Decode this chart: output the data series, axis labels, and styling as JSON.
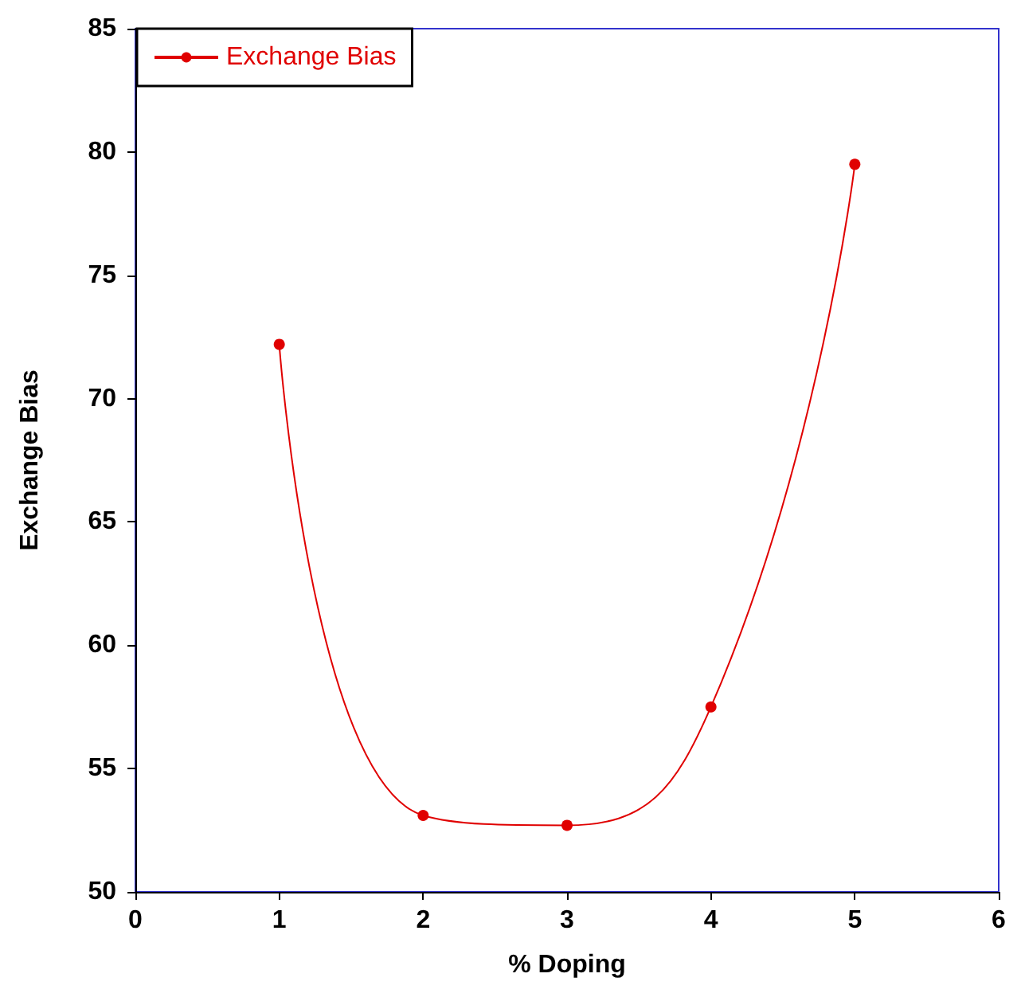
{
  "chart_data": {
    "type": "line",
    "xlabel": "% Doping",
    "ylabel": "Exchange Bias",
    "x": [
      1,
      2,
      3,
      4,
      5
    ],
    "series": [
      {
        "name": "Exchange Bias",
        "color": "#e00000",
        "values": [
          72.2,
          53.1,
          52.7,
          57.5,
          79.5
        ]
      }
    ],
    "xlim": [
      0,
      6
    ],
    "xticks": [
      0,
      1,
      2,
      3,
      4,
      5,
      6
    ],
    "ylim": [
      50,
      85
    ],
    "yticks": [
      50,
      55,
      60,
      65,
      70,
      75,
      80,
      85
    ],
    "grid": false,
    "legend": "top left",
    "marker": "circle",
    "line_style": "solid"
  }
}
